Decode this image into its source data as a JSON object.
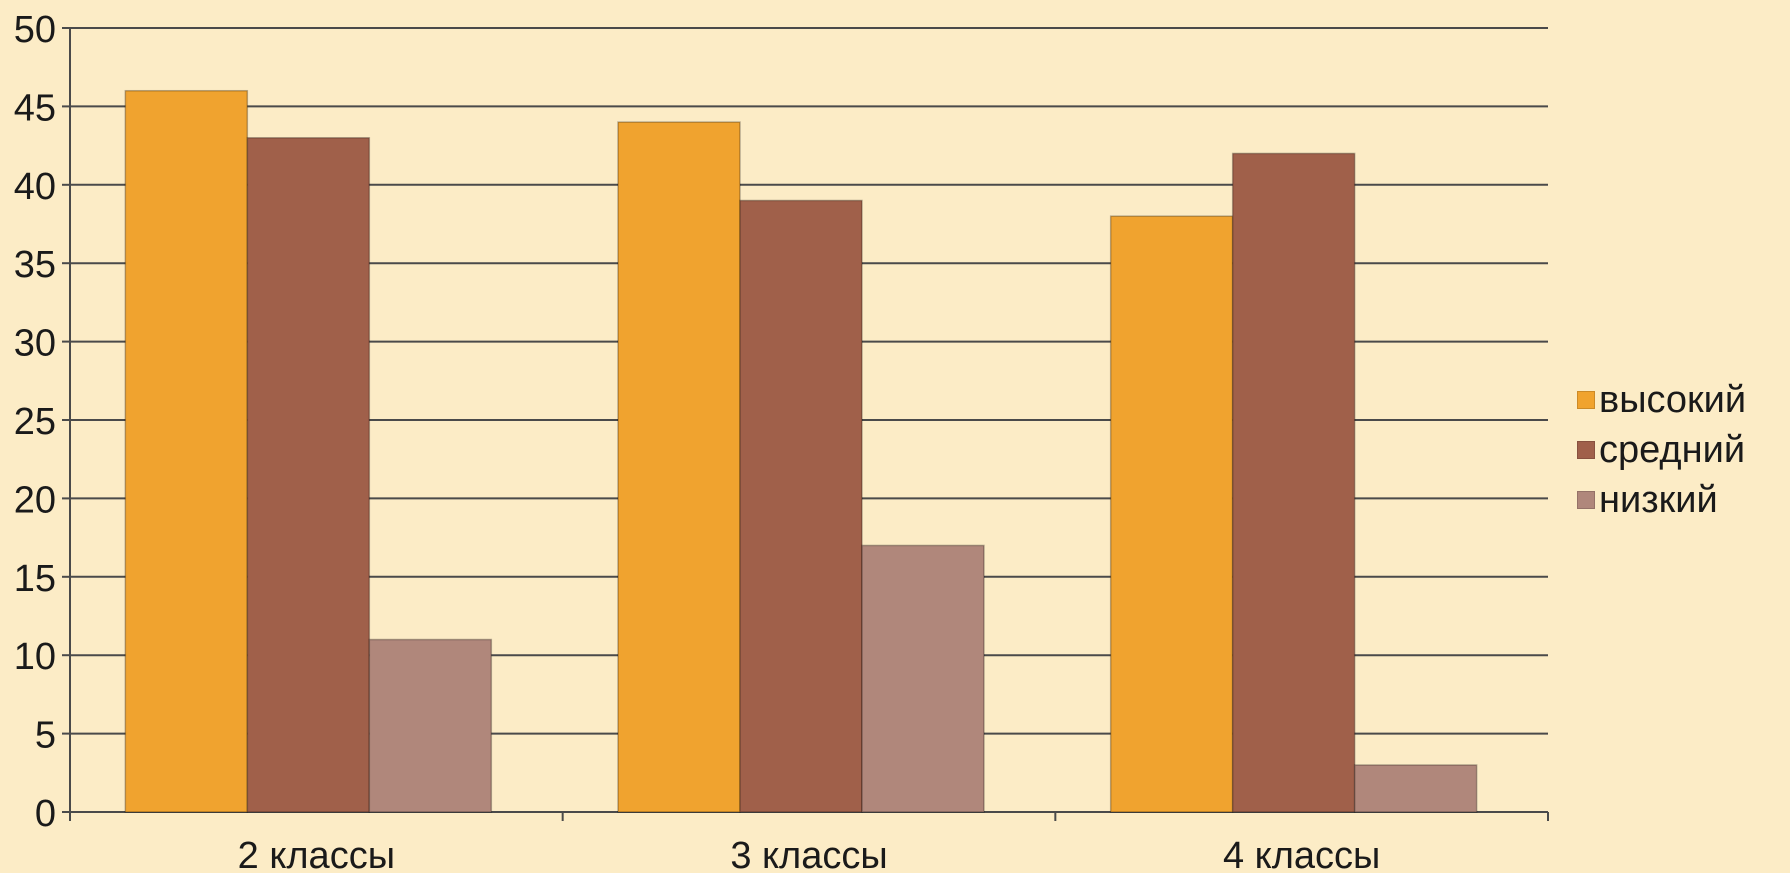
{
  "chart_data": {
    "type": "bar",
    "title": "",
    "xlabel": "",
    "ylabel": "",
    "categories": [
      "2 классы",
      "3 классы",
      "4 классы"
    ],
    "series": [
      {
        "name": "высокий",
        "values": [
          46,
          44,
          38
        ],
        "color": "#f0a32f"
      },
      {
        "name": "средний",
        "values": [
          43,
          39,
          42
        ],
        "color": "#a0604a"
      },
      {
        "name": "низкий",
        "values": [
          11,
          17,
          3
        ],
        "color": "#b0877b"
      }
    ],
    "ylim": [
      0,
      50
    ],
    "yticks": [
      "0",
      "5",
      "10",
      "15",
      "20",
      "25",
      "30",
      "35",
      "40",
      "45",
      "50"
    ],
    "grid": true,
    "legend": "right",
    "colors": {
      "background": "#fcecc6",
      "gridline": "#4a4a4a",
      "axis": "#4a4a4a"
    }
  }
}
